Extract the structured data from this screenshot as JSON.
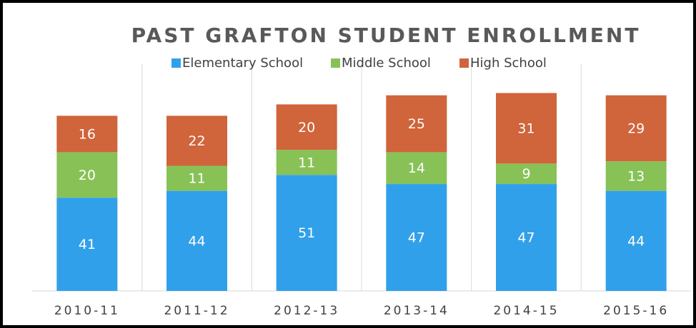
{
  "chart_data": {
    "type": "stacked_bar",
    "title": "PAST GRAFTON STUDENT ENROLLMENT",
    "categories": [
      "2010-11",
      "2011-12",
      "2012-13",
      "2013-14",
      "2014-15",
      "2015-16"
    ],
    "series": [
      {
        "name": "Elementary School",
        "color": "#31a0ea",
        "values": [
          41,
          44,
          51,
          47,
          47,
          44
        ]
      },
      {
        "name": "Middle School",
        "color": "#88c257",
        "values": [
          20,
          11,
          11,
          14,
          9,
          13
        ]
      },
      {
        "name": "High School",
        "color": "#d0643a",
        "values": [
          16,
          22,
          20,
          25,
          31,
          29
        ]
      }
    ],
    "ylim": [
      0,
      100
    ],
    "legend": "top"
  }
}
